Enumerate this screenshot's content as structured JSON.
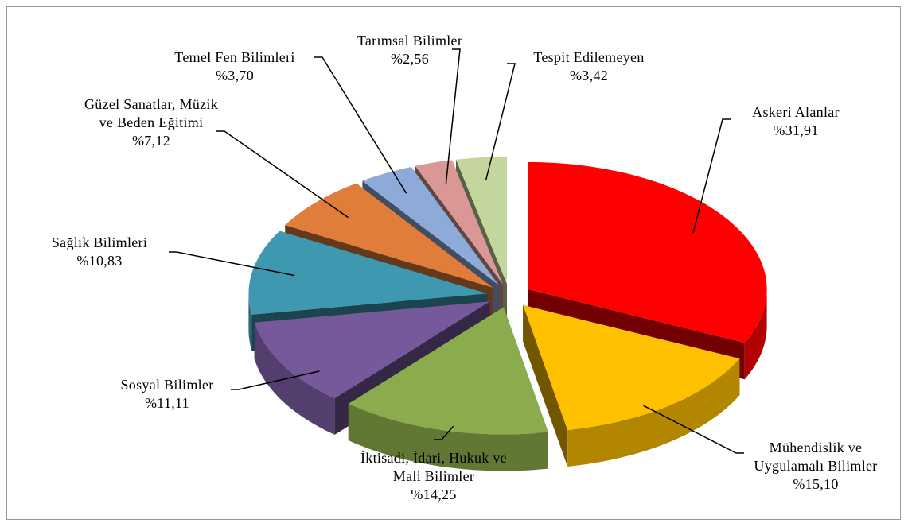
{
  "chart_data": {
    "type": "pie",
    "categories": [
      "Askeri Alanlar",
      "Mühendislik ve Uygulamalı Bilimler",
      "İktisadi, İdari, Hukuk ve Mali Bilimler",
      "Sosyal Bilimler",
      "Sağlık Bilimleri",
      "Güzel Sanatlar, Müzik ve Beden Eğitimi",
      "Temel Fen Bilimleri",
      "Tarımsal Bilimler",
      "Tespit Edilemeyen"
    ],
    "values": [
      31.91,
      15.1,
      14.25,
      11.11,
      10.83,
      7.12,
      3.7,
      2.56,
      3.42
    ],
    "value_labels": [
      "%31,91",
      "%15,10",
      "%14,25",
      "%11,11",
      "%10,83",
      "%7,12",
      "%3,70",
      "%2,56",
      "%3,42"
    ],
    "colors": [
      "#ff0000",
      "#ffc000",
      "#8aac4c",
      "#76599b",
      "#3d98b0",
      "#e07d3a",
      "#8eaad9",
      "#d99795",
      "#c3d69b"
    ]
  }
}
